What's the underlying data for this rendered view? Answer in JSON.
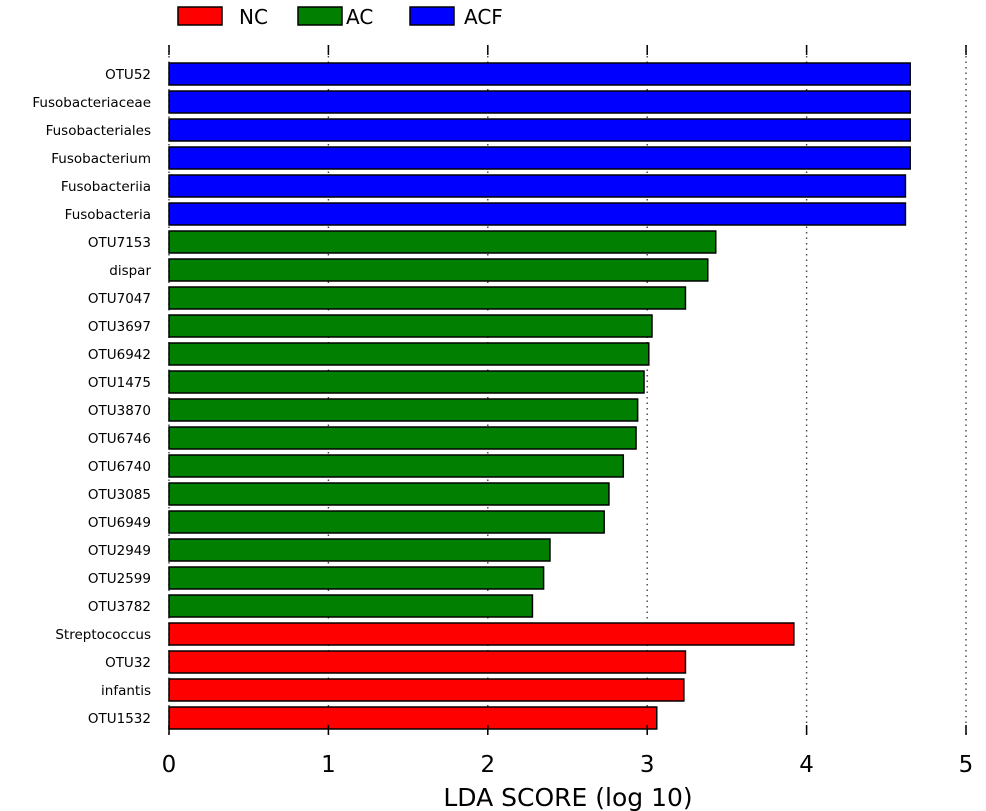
{
  "chart_data": {
    "type": "bar",
    "orientation": "horizontal",
    "xlabel": "LDA SCORE (log 10)",
    "xlim": [
      0,
      5
    ],
    "xticks": [
      0,
      1,
      2,
      3,
      4,
      5
    ],
    "grid": "vertical dotted",
    "legend_position": "top-left",
    "series": [
      {
        "name": "NC",
        "color": "#ff0000"
      },
      {
        "name": "AC",
        "color": "#007f00"
      },
      {
        "name": "ACF",
        "color": "#0000ff"
      }
    ],
    "bars": [
      {
        "label": "OTU52",
        "value": 4.65,
        "group": "ACF"
      },
      {
        "label": "Fusobacteriaceae",
        "value": 4.65,
        "group": "ACF"
      },
      {
        "label": "Fusobacteriales",
        "value": 4.65,
        "group": "ACF"
      },
      {
        "label": "Fusobacterium",
        "value": 4.65,
        "group": "ACF"
      },
      {
        "label": "Fusobacteriia",
        "value": 4.62,
        "group": "ACF"
      },
      {
        "label": "Fusobacteria",
        "value": 4.62,
        "group": "ACF"
      },
      {
        "label": "OTU7153",
        "value": 3.43,
        "group": "AC"
      },
      {
        "label": "dispar",
        "value": 3.38,
        "group": "AC"
      },
      {
        "label": "OTU7047",
        "value": 3.24,
        "group": "AC"
      },
      {
        "label": "OTU3697",
        "value": 3.03,
        "group": "AC"
      },
      {
        "label": "OTU6942",
        "value": 3.01,
        "group": "AC"
      },
      {
        "label": "OTU1475",
        "value": 2.98,
        "group": "AC"
      },
      {
        "label": "OTU3870",
        "value": 2.94,
        "group": "AC"
      },
      {
        "label": "OTU6746",
        "value": 2.93,
        "group": "AC"
      },
      {
        "label": "OTU6740",
        "value": 2.85,
        "group": "AC"
      },
      {
        "label": "OTU3085",
        "value": 2.76,
        "group": "AC"
      },
      {
        "label": "OTU6949",
        "value": 2.73,
        "group": "AC"
      },
      {
        "label": "OTU2949",
        "value": 2.39,
        "group": "AC"
      },
      {
        "label": "OTU2599",
        "value": 2.35,
        "group": "AC"
      },
      {
        "label": "OTU3782",
        "value": 2.28,
        "group": "AC"
      },
      {
        "label": "Streptococcus",
        "value": 3.92,
        "group": "NC"
      },
      {
        "label": "OTU32",
        "value": 3.24,
        "group": "NC"
      },
      {
        "label": "infantis",
        "value": 3.23,
        "group": "NC"
      },
      {
        "label": "OTU1532",
        "value": 3.06,
        "group": "NC"
      }
    ]
  }
}
